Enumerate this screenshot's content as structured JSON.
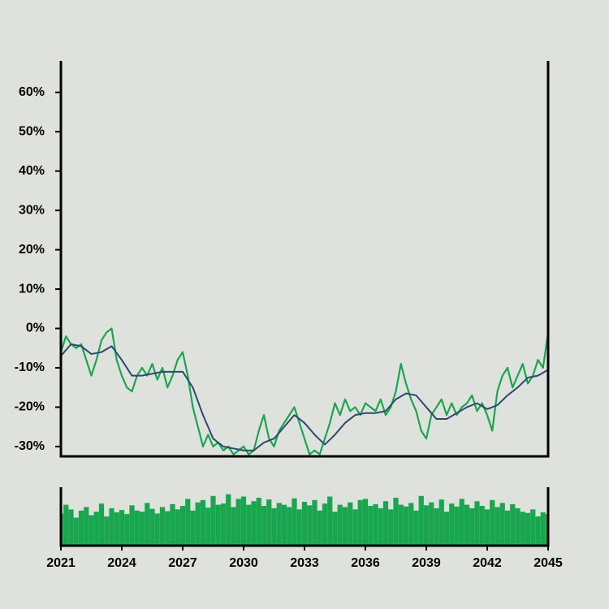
{
  "chart_data": [
    {
      "type": "line",
      "x": [
        2021,
        2021.25,
        2021.5,
        2021.75,
        2022,
        2022.25,
        2022.5,
        2022.75,
        2023,
        2023.25,
        2023.5,
        2023.75,
        2024,
        2024.25,
        2024.5,
        2024.75,
        2025,
        2025.25,
        2025.5,
        2025.75,
        2026,
        2026.25,
        2026.5,
        2026.75,
        2027,
        2027.25,
        2027.5,
        2027.75,
        2028,
        2028.25,
        2028.5,
        2028.75,
        2029,
        2029.25,
        2029.5,
        2029.75,
        2030,
        2030.25,
        2030.5,
        2030.75,
        2031,
        2031.25,
        2031.5,
        2031.75,
        2032,
        2032.25,
        2032.5,
        2032.75,
        2033,
        2033.25,
        2033.5,
        2033.75,
        2034,
        2034.25,
        2034.5,
        2034.75,
        2035,
        2035.25,
        2035.5,
        2035.75,
        2036,
        2036.25,
        2036.5,
        2036.75,
        2037,
        2037.25,
        2037.5,
        2037.75,
        2038,
        2038.25,
        2038.5,
        2038.75,
        2039,
        2039.25,
        2039.5,
        2039.75,
        2040,
        2040.25,
        2040.5,
        2040.75,
        2041,
        2041.25,
        2041.5,
        2041.75,
        2042,
        2042.25,
        2042.5,
        2042.75,
        2043,
        2043.25,
        2043.5,
        2043.75,
        2044,
        2044.25,
        2044.5,
        2044.75,
        2045
      ],
      "series": [
        {
          "color": "#1aa64f",
          "values": [
            -6,
            -2,
            -4,
            -5,
            -4,
            -8,
            -12,
            -8,
            -3,
            -1,
            0,
            -8,
            -12,
            -15,
            -16,
            -12,
            -10,
            -12,
            -9,
            -13,
            -10,
            -15,
            -12,
            -8,
            -6,
            -12,
            -20,
            -25,
            -30,
            -27,
            -30,
            -29,
            -31,
            -30,
            -32,
            -31,
            -30,
            -32,
            -31,
            -26,
            -22,
            -28,
            -30,
            -26,
            -24,
            -22,
            -20,
            -24,
            -28,
            -32,
            -31,
            -32,
            -28,
            -24,
            -19,
            -22,
            -18,
            -21,
            -20,
            -22,
            -19,
            -20,
            -21,
            -18,
            -22,
            -20,
            -16,
            -9,
            -14,
            -18,
            -21,
            -26,
            -28,
            -22,
            -20,
            -18,
            -22,
            -19,
            -22,
            -20,
            -19,
            -17,
            -21,
            -19,
            -22,
            -26,
            -16,
            -12,
            -10,
            -15,
            -12,
            -9,
            -14,
            -12,
            -8,
            -10,
            -1
          ]
        },
        {
          "color": "#2a4a6e",
          "values": [
            -7,
            -5.5,
            -4,
            -4.25,
            -4.5,
            -5.5,
            -6.5,
            -6.25,
            -6,
            -5.25,
            -4.5,
            -6.25,
            -8,
            -10,
            -12,
            -12,
            -12,
            -11.75,
            -11.5,
            -11.25,
            -11,
            -11,
            -11,
            -11,
            -11,
            -13,
            -15,
            -18.5,
            -22,
            -25,
            -28,
            -29,
            -30,
            -30.25,
            -30.5,
            -30.75,
            -31,
            -31,
            -31,
            -30,
            -29,
            -28.5,
            -28,
            -26.5,
            -25,
            -23.5,
            -22,
            -23,
            -24,
            -25.5,
            -27,
            -28.25,
            -29.5,
            -28.25,
            -27,
            -25.5,
            -24,
            -23,
            -22,
            -21.75,
            -21.5,
            -21.5,
            -21.5,
            -21.25,
            -21,
            -19.5,
            -18,
            -17.25,
            -16.5,
            -16.75,
            -17,
            -18.5,
            -20,
            -21.5,
            -23,
            -23,
            -23,
            -22.25,
            -21.5,
            -20.75,
            -20,
            -19.5,
            -19,
            -19.75,
            -20.5,
            -20,
            -19.5,
            -18.25,
            -17,
            -16,
            -15,
            -13.75,
            -12.5,
            -12.25,
            -12,
            -11.25,
            -10.5
          ]
        }
      ],
      "xlim": [
        2021,
        2045
      ],
      "ylim": [
        -32.5,
        68
      ],
      "yticks": [
        {
          "value": -30,
          "label": "-30%"
        },
        {
          "value": -20,
          "label": "-20%"
        },
        {
          "value": -10,
          "label": "-10%"
        },
        {
          "value": 0,
          "label": "0%"
        },
        {
          "value": 10,
          "label": "10%"
        },
        {
          "value": 20,
          "label": "20%"
        },
        {
          "value": 30,
          "label": "30%"
        },
        {
          "value": 40,
          "label": "40%"
        },
        {
          "value": 50,
          "label": "50%"
        },
        {
          "value": 60,
          "label": "60%"
        }
      ]
    },
    {
      "type": "bar",
      "color": "#1aa64f",
      "x": [
        2021,
        2021.25,
        2021.5,
        2021.75,
        2022,
        2022.25,
        2022.5,
        2022.75,
        2023,
        2023.25,
        2023.5,
        2023.75,
        2024,
        2024.25,
        2024.5,
        2024.75,
        2025,
        2025.25,
        2025.5,
        2025.75,
        2026,
        2026.25,
        2026.5,
        2026.75,
        2027,
        2027.25,
        2027.5,
        2027.75,
        2028,
        2028.25,
        2028.5,
        2028.75,
        2029,
        2029.25,
        2029.5,
        2029.75,
        2030,
        2030.25,
        2030.5,
        2030.75,
        2031,
        2031.25,
        2031.5,
        2031.75,
        2032,
        2032.25,
        2032.5,
        2032.75,
        2033,
        2033.25,
        2033.5,
        2033.75,
        2034,
        2034.25,
        2034.5,
        2034.75,
        2035,
        2035.25,
        2035.5,
        2035.75,
        2036,
        2036.25,
        2036.5,
        2036.75,
        2037,
        2037.25,
        2037.5,
        2037.75,
        2038,
        2038.25,
        2038.5,
        2038.75,
        2039,
        2039.25,
        2039.5,
        2039.75,
        2040,
        2040.25,
        2040.5,
        2040.75,
        2041,
        2041.25,
        2041.5,
        2041.75,
        2042,
        2042.25,
        2042.5,
        2042.75,
        2043,
        2043.25,
        2043.5,
        2043.75,
        2044,
        2044.25,
        2044.5,
        2044.75,
        2045
      ],
      "values": [
        55,
        70,
        62,
        48,
        60,
        66,
        52,
        58,
        72,
        50,
        64,
        57,
        61,
        54,
        69,
        60,
        58,
        73,
        63,
        55,
        66,
        59,
        71,
        62,
        68,
        80,
        60,
        74,
        78,
        65,
        85,
        70,
        72,
        88,
        66,
        80,
        84,
        70,
        76,
        82,
        68,
        79,
        64,
        73,
        70,
        66,
        81,
        62,
        75,
        69,
        78,
        60,
        72,
        84,
        58,
        70,
        66,
        74,
        62,
        78,
        80,
        68,
        71,
        64,
        76,
        62,
        82,
        70,
        67,
        73,
        60,
        85,
        69,
        74,
        64,
        79,
        58,
        72,
        67,
        80,
        70,
        64,
        76,
        68,
        62,
        78,
        66,
        73,
        60,
        71,
        64,
        58,
        56,
        62,
        50,
        57,
        54
      ],
      "xlim": [
        2021,
        2045
      ],
      "ylim": [
        0,
        100
      ],
      "xticks": [
        2021,
        2024,
        2027,
        2030,
        2033,
        2036,
        2039,
        2042,
        2045
      ]
    }
  ]
}
